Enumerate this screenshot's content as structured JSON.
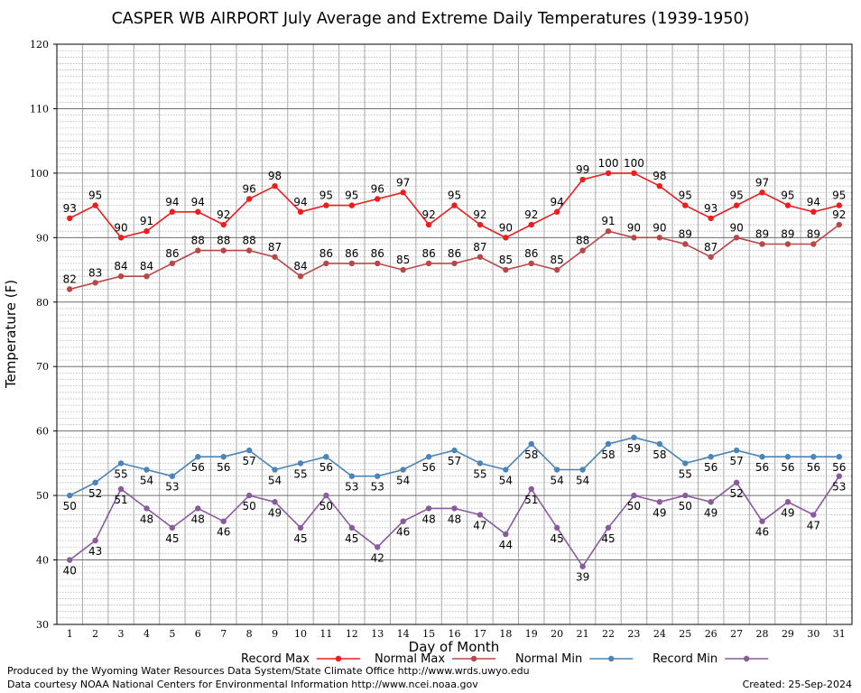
{
  "chart_data": {
    "type": "line",
    "title": "CASPER WB AIRPORT July Average and Extreme Daily Temperatures (1939-1950)",
    "xlabel": "Day of Month",
    "ylabel": "Temperature (F)",
    "ylim": [
      30,
      120
    ],
    "yticks": [
      30,
      40,
      50,
      60,
      70,
      80,
      90,
      100,
      110,
      120
    ],
    "x": [
      1,
      2,
      3,
      4,
      5,
      6,
      7,
      8,
      9,
      10,
      11,
      12,
      13,
      14,
      15,
      16,
      17,
      18,
      19,
      20,
      21,
      22,
      23,
      24,
      25,
      26,
      27,
      28,
      29,
      30,
      31
    ],
    "grid": true,
    "legend_position": "bottom",
    "series": [
      {
        "name": "Record Max",
        "color": "#ee1c1c",
        "label_side": "above",
        "values": [
          93,
          95,
          90,
          91,
          94,
          94,
          92,
          96,
          98,
          94,
          95,
          95,
          96,
          97,
          92,
          95,
          92,
          90,
          92,
          94,
          99,
          100,
          100,
          98,
          95,
          93,
          95,
          97,
          95,
          94,
          95
        ]
      },
      {
        "name": "Normal Max",
        "color": "#b84848",
        "label_side": "above",
        "values": [
          82,
          83,
          84,
          84,
          86,
          88,
          88,
          88,
          87,
          84,
          86,
          86,
          86,
          85,
          86,
          86,
          87,
          85,
          86,
          85,
          88,
          91,
          90,
          90,
          89,
          87,
          90,
          89,
          89,
          89,
          92
        ]
      },
      {
        "name": "Normal Min",
        "color": "#4a84b8",
        "label_side": "below",
        "values": [
          50,
          52,
          55,
          54,
          53,
          56,
          56,
          57,
          54,
          55,
          56,
          53,
          53,
          54,
          56,
          57,
          55,
          54,
          58,
          54,
          54,
          58,
          59,
          58,
          55,
          56,
          57,
          56,
          56,
          56,
          56
        ]
      },
      {
        "name": "Record Min",
        "color": "#8a5a9e",
        "label_side": "below",
        "values": [
          40,
          43,
          51,
          48,
          45,
          48,
          46,
          50,
          49,
          45,
          50,
          45,
          42,
          46,
          48,
          48,
          47,
          44,
          51,
          45,
          39,
          45,
          50,
          49,
          50,
          49,
          52,
          46,
          49,
          47,
          53
        ]
      }
    ]
  },
  "footer": {
    "produced_by": "Produced by the Wyoming Water Resources Data System/State Climate Office http://www.wrds.uwyo.edu",
    "courtesy": "Data courtesy NOAA National Centers for Environmental Information http://www.ncei.noaa.gov",
    "created": "Created:  25-Sep-2024"
  }
}
